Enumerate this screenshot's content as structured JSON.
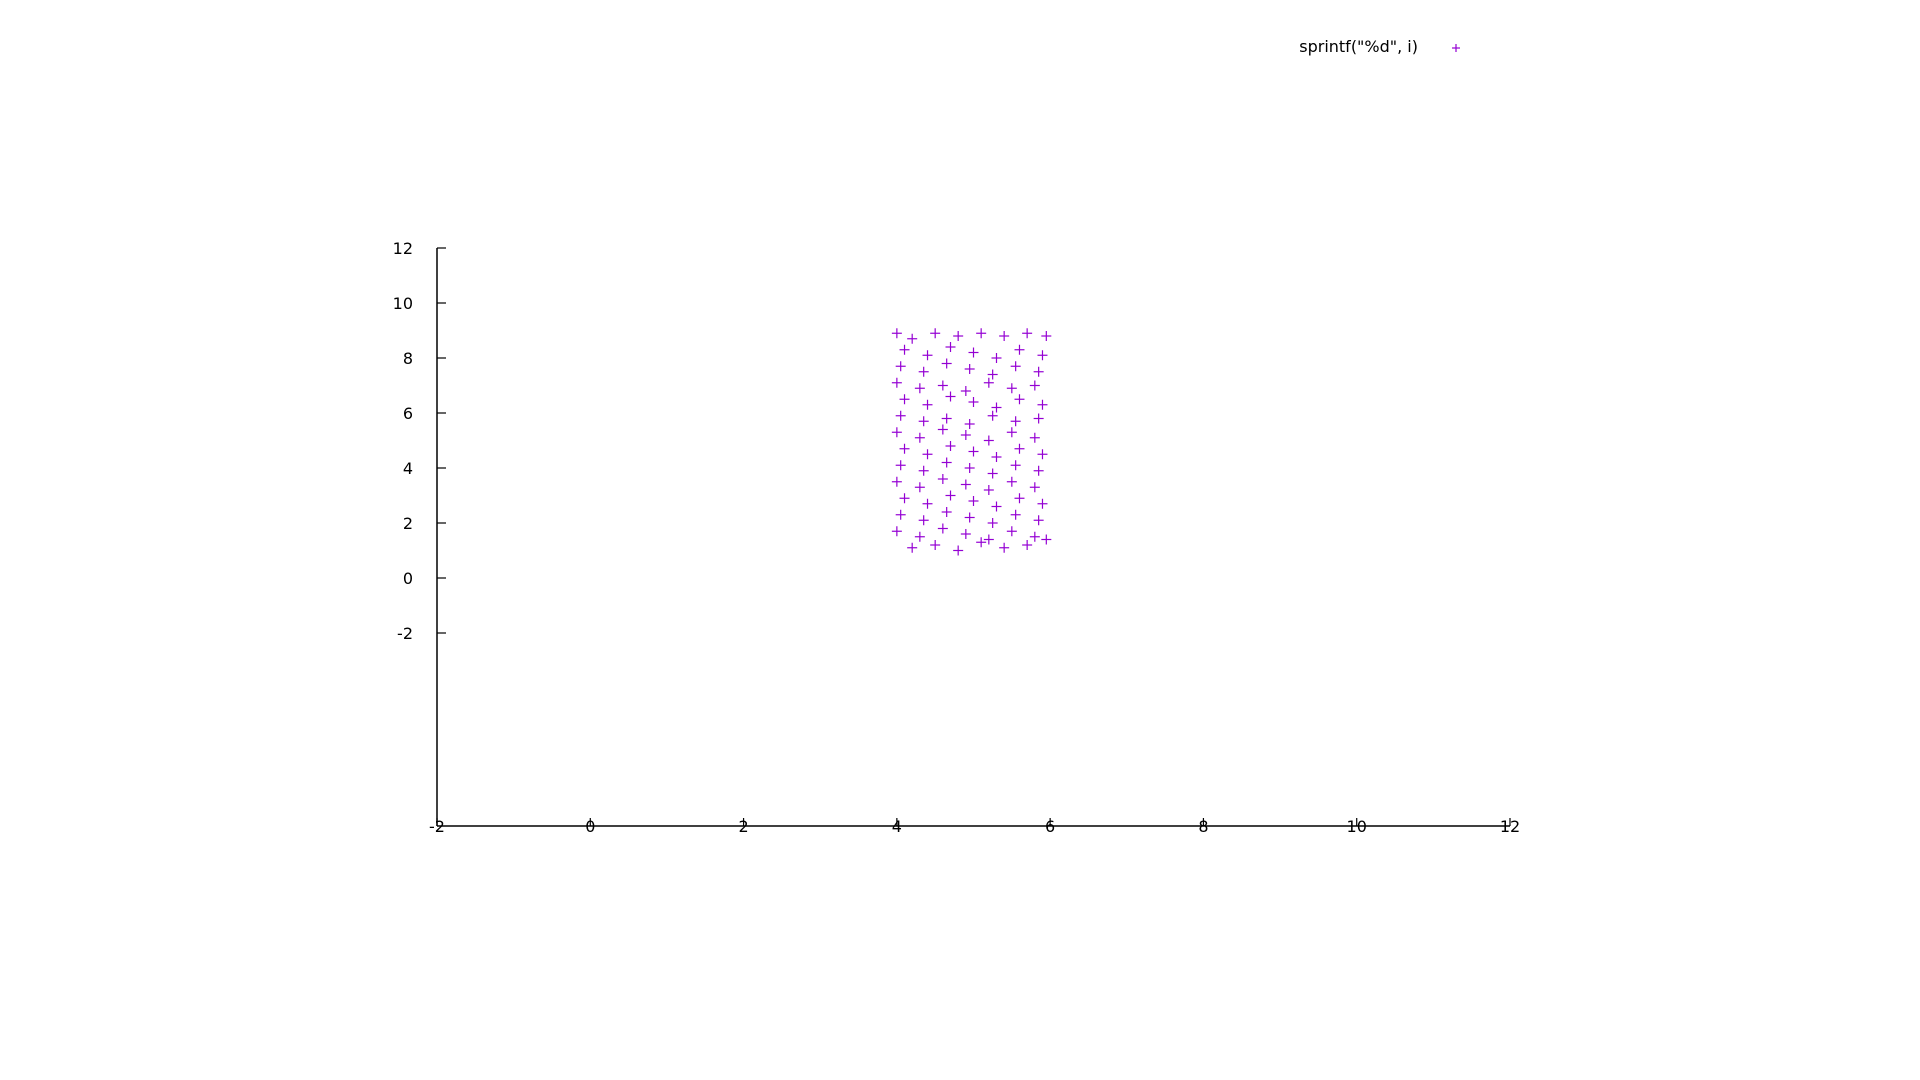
{
  "chart_data": {
    "type": "scatter",
    "title": "",
    "xlabel": "",
    "ylabel": "",
    "xlim": [
      -2,
      12
    ],
    "ylim": [
      -2,
      12
    ],
    "x_ticks": [
      "-2",
      "0",
      "2",
      "4",
      "6",
      "8",
      "10",
      "12"
    ],
    "y_ticks": [
      "-2",
      "0",
      "2",
      "4",
      "6",
      "8",
      "10",
      "12"
    ],
    "legend": {
      "position": "top-right"
    },
    "grid": false,
    "series": [
      {
        "name": "sprintf(\"%d\", i)",
        "marker": "plus",
        "color": "#9400d3",
        "x_range": [
          4,
          6
        ],
        "y_range": [
          1,
          9
        ],
        "points": [
          [
            4.0,
            8.9
          ],
          [
            4.2,
            8.7
          ],
          [
            4.5,
            8.9
          ],
          [
            4.8,
            8.8
          ],
          [
            5.1,
            8.9
          ],
          [
            5.4,
            8.8
          ],
          [
            5.7,
            8.9
          ],
          [
            5.95,
            8.8
          ],
          [
            4.1,
            8.3
          ],
          [
            4.4,
            8.1
          ],
          [
            4.7,
            8.4
          ],
          [
            5.0,
            8.2
          ],
          [
            5.3,
            8.0
          ],
          [
            5.6,
            8.3
          ],
          [
            5.9,
            8.1
          ],
          [
            4.05,
            7.7
          ],
          [
            4.35,
            7.5
          ],
          [
            4.65,
            7.8
          ],
          [
            4.95,
            7.6
          ],
          [
            5.25,
            7.4
          ],
          [
            5.55,
            7.7
          ],
          [
            5.85,
            7.5
          ],
          [
            4.0,
            7.1
          ],
          [
            4.3,
            6.9
          ],
          [
            4.6,
            7.0
          ],
          [
            4.9,
            6.8
          ],
          [
            5.2,
            7.1
          ],
          [
            5.5,
            6.9
          ],
          [
            5.8,
            7.0
          ],
          [
            4.1,
            6.5
          ],
          [
            4.4,
            6.3
          ],
          [
            4.7,
            6.6
          ],
          [
            5.0,
            6.4
          ],
          [
            5.3,
            6.2
          ],
          [
            5.6,
            6.5
          ],
          [
            5.9,
            6.3
          ],
          [
            4.05,
            5.9
          ],
          [
            4.35,
            5.7
          ],
          [
            4.65,
            5.8
          ],
          [
            4.95,
            5.6
          ],
          [
            5.25,
            5.9
          ],
          [
            5.55,
            5.7
          ],
          [
            5.85,
            5.8
          ],
          [
            4.0,
            5.3
          ],
          [
            4.3,
            5.1
          ],
          [
            4.6,
            5.4
          ],
          [
            4.9,
            5.2
          ],
          [
            5.2,
            5.0
          ],
          [
            5.5,
            5.3
          ],
          [
            5.8,
            5.1
          ],
          [
            4.1,
            4.7
          ],
          [
            4.4,
            4.5
          ],
          [
            4.7,
            4.8
          ],
          [
            5.0,
            4.6
          ],
          [
            5.3,
            4.4
          ],
          [
            5.6,
            4.7
          ],
          [
            5.9,
            4.5
          ],
          [
            4.05,
            4.1
          ],
          [
            4.35,
            3.9
          ],
          [
            4.65,
            4.2
          ],
          [
            4.95,
            4.0
          ],
          [
            5.25,
            3.8
          ],
          [
            5.55,
            4.1
          ],
          [
            5.85,
            3.9
          ],
          [
            4.0,
            3.5
          ],
          [
            4.3,
            3.3
          ],
          [
            4.6,
            3.6
          ],
          [
            4.9,
            3.4
          ],
          [
            5.2,
            3.2
          ],
          [
            5.5,
            3.5
          ],
          [
            5.8,
            3.3
          ],
          [
            4.1,
            2.9
          ],
          [
            4.4,
            2.7
          ],
          [
            4.7,
            3.0
          ],
          [
            5.0,
            2.8
          ],
          [
            5.3,
            2.6
          ],
          [
            5.6,
            2.9
          ],
          [
            5.9,
            2.7
          ],
          [
            4.05,
            2.3
          ],
          [
            4.35,
            2.1
          ],
          [
            4.65,
            2.4
          ],
          [
            4.95,
            2.2
          ],
          [
            5.25,
            2.0
          ],
          [
            5.55,
            2.3
          ],
          [
            5.85,
            2.1
          ],
          [
            4.0,
            1.7
          ],
          [
            4.3,
            1.5
          ],
          [
            4.6,
            1.8
          ],
          [
            4.9,
            1.6
          ],
          [
            5.2,
            1.4
          ],
          [
            5.5,
            1.7
          ],
          [
            5.8,
            1.5
          ],
          [
            4.2,
            1.1
          ],
          [
            4.5,
            1.2
          ],
          [
            4.8,
            1.0
          ],
          [
            5.1,
            1.3
          ],
          [
            5.4,
            1.1
          ],
          [
            5.7,
            1.2
          ],
          [
            5.95,
            1.4
          ]
        ]
      }
    ]
  }
}
